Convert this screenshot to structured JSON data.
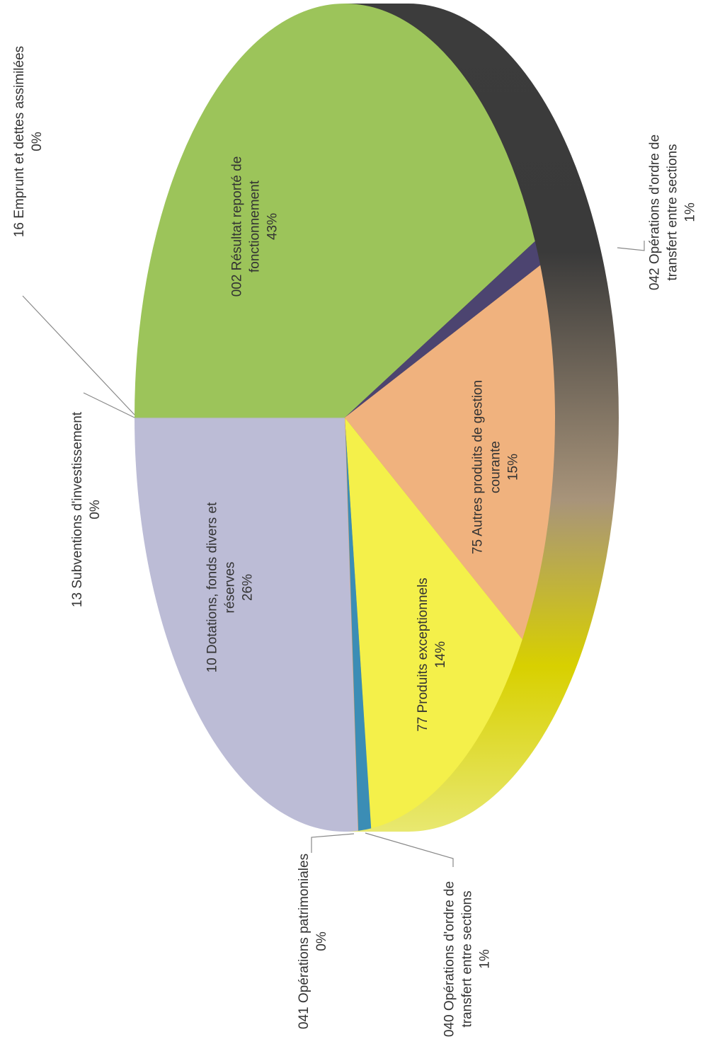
{
  "chart_data": {
    "type": "pie",
    "categories": [
      "002 Résultat reporté de fonctionnement",
      "042 Opérations d'ordre de transfert entre sections",
      "75 Autres produits de gestion courante",
      "77 Produits exceptionnels",
      "040 Opérations d'ordre de transfert entre sections",
      "041 Opérations patrimoniales",
      "10 Dotations, fonds divers et réserves",
      "13 Subventions d'investissement",
      "16 Emprunt et dettes assimilées"
    ],
    "values": [
      43,
      1,
      15,
      14,
      1,
      0,
      26,
      0,
      0
    ],
    "value_labels": [
      "43%",
      "1%",
      "15%",
      "14%",
      "1%",
      "0%",
      "26%",
      "0%",
      "0%"
    ],
    "colors": [
      "#9cc45a",
      "#4c4470",
      "#f0b27e",
      "#f4f04a",
      "#3b8db5",
      "#e0a060",
      "#bcbcd6",
      "#d0d0e0",
      "#a0c070"
    ]
  }
}
